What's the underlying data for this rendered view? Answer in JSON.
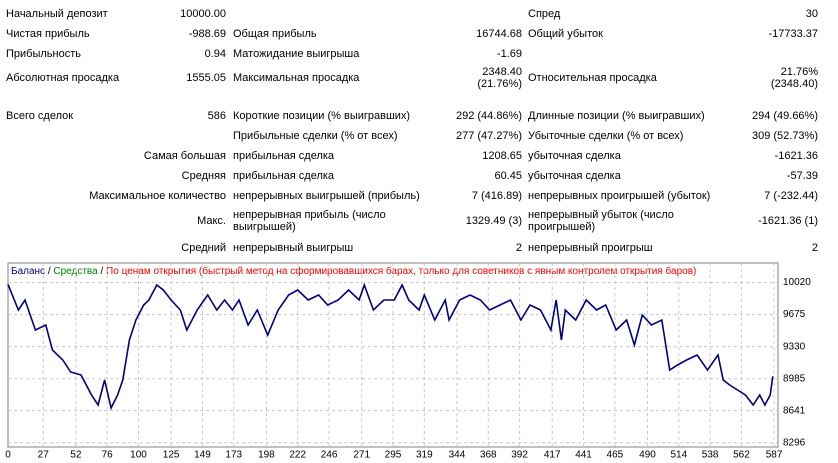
{
  "report": {
    "rows": [
      [
        "Начальный депозит",
        "10000.00",
        "Спред",
        "30"
      ],
      [
        "Чистая прибыль",
        "-988.69",
        "Общая прибыль",
        "16744.68",
        "Общий убыток",
        "-17733.37"
      ],
      [
        "Прибыльность",
        "0.94",
        "Матожидание выигрыша",
        "-1.69"
      ],
      [
        "Абсолютная просадка",
        "1555.05",
        "Максимальная просадка",
        "2348.40",
        "(21.76%)",
        "Относительная просадка",
        "21.76%",
        "(2348.40)"
      ],
      [
        "Всего сделок",
        "586",
        "Короткие позиции (% выигравших)",
        "292 (44.86%)",
        "Длинные позиции (% выигравших)",
        "294 (49.66%)"
      ],
      [
        "Прибыльные сделки (% от всех)",
        "277 (47.27%)",
        "Убыточные сделки (% от всех)",
        "309 (52.73%)"
      ],
      [
        "Самая большая",
        "прибыльная сделка",
        "1208.65",
        "убыточная сделка",
        "-1621.36"
      ],
      [
        "Средняя",
        "прибыльная сделка",
        "60.45",
        "убыточная сделка",
        "-57.39"
      ],
      [
        "Максимальное количество",
        "непрерывных выигрышей (прибыль)",
        "7 (416.89)",
        "непрерывных проигрышей (убыток)",
        "7 (-232.44)"
      ],
      [
        "Макс.",
        "непрерывная прибыль (число выигрышей)",
        "1329.49 (3)",
        "непрерывный убыток (число проигрышей)",
        "-1621.36 (1)"
      ],
      [
        "Средний",
        "непрерывный выигрыш",
        "2",
        "непрерывный проигрыш",
        "2"
      ]
    ]
  },
  "chart_data": {
    "type": "line",
    "separator": "/",
    "equity_label": "Средства",
    "equity_color": "#008000",
    "model_label": "По ценам открытия (быстрый метод на сформировавшихся барах, только для советников с явным контролем открытия баров)",
    "model_color": "#ff0000",
    "x": [
      0,
      8,
      13,
      21,
      29,
      34,
      42,
      48,
      56,
      64,
      69,
      74,
      79,
      84,
      88,
      93,
      98,
      104,
      108,
      114,
      119,
      125,
      132,
      137,
      141,
      145,
      153,
      160,
      166,
      172,
      177,
      184,
      191,
      199,
      207,
      215,
      222,
      230,
      238,
      245,
      253,
      261,
      269,
      273,
      280,
      288,
      296,
      302,
      307,
      315,
      319,
      327,
      335,
      338,
      346,
      354,
      362,
      369,
      377,
      385,
      393,
      400,
      408,
      416,
      420,
      424,
      427,
      435,
      443,
      451,
      458,
      466,
      474,
      480,
      486,
      493,
      501,
      507,
      513,
      520,
      528,
      536,
      544,
      548,
      553,
      559,
      565,
      571,
      576,
      580,
      584,
      586
    ],
    "series": [
      {
        "name": "Баланс",
        "color": "#000080",
        "values": [
          10000,
          9724,
          9832,
          9509,
          9563,
          9294,
          9186,
          9057,
          9025,
          8810,
          8702,
          8971,
          8670,
          8810,
          8971,
          9401,
          9617,
          9778,
          9832,
          9993,
          9939,
          9832,
          9724,
          9509,
          9617,
          9724,
          9886,
          9724,
          9832,
          9724,
          9832,
          9563,
          9724,
          9455,
          9724,
          9886,
          9939,
          9832,
          9886,
          9778,
          9832,
          9939,
          9832,
          9993,
          9724,
          9832,
          9832,
          9993,
          9832,
          9724,
          9886,
          9617,
          9832,
          9617,
          9832,
          9886,
          9832,
          9724,
          9778,
          9832,
          9617,
          9778,
          9724,
          9509,
          9832,
          9401,
          9724,
          9617,
          9832,
          9724,
          9778,
          9509,
          9617,
          9348,
          9670,
          9563,
          9617,
          9079,
          9132,
          9186,
          9240,
          9079,
          9240,
          8971,
          8917,
          8863,
          8810,
          8702,
          8810,
          8702,
          8810,
          9011.31
        ]
      }
    ],
    "xlim": [
      0,
      590
    ],
    "ylim": [
      8250,
      10230
    ],
    "xticks": [
      0,
      27,
      52,
      76,
      100,
      125,
      149,
      173,
      198,
      222,
      246,
      271,
      295,
      319,
      344,
      368,
      392,
      417,
      441,
      465,
      490,
      514,
      538,
      562,
      587
    ],
    "yticks": [
      10020,
      9675,
      9330,
      8985,
      8641,
      8296
    ],
    "grid": true
  }
}
